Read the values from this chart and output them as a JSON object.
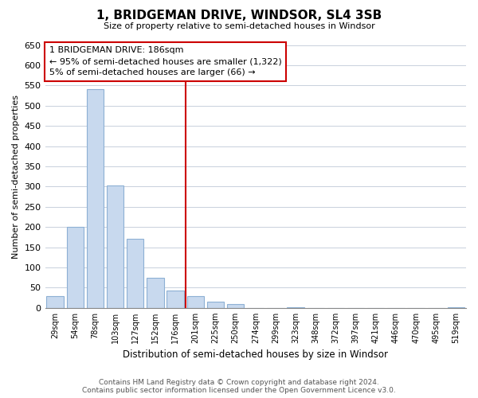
{
  "title": "1, BRIDGEMAN DRIVE, WINDSOR, SL4 3SB",
  "subtitle": "Size of property relative to semi-detached houses in Windsor",
  "xlabel": "Distribution of semi-detached houses by size in Windsor",
  "ylabel": "Number of semi-detached properties",
  "footer_line1": "Contains HM Land Registry data © Crown copyright and database right 2024.",
  "footer_line2": "Contains public sector information licensed under the Open Government Licence v3.0.",
  "bar_labels": [
    "29sqm",
    "54sqm",
    "78sqm",
    "103sqm",
    "127sqm",
    "152sqm",
    "176sqm",
    "201sqm",
    "225sqm",
    "250sqm",
    "274sqm",
    "299sqm",
    "323sqm",
    "348sqm",
    "372sqm",
    "397sqm",
    "421sqm",
    "446sqm",
    "470sqm",
    "495sqm",
    "519sqm"
  ],
  "bar_values": [
    30,
    200,
    540,
    302,
    170,
    75,
    42,
    30,
    15,
    10,
    0,
    0,
    2,
    0,
    0,
    0,
    0,
    0,
    0,
    0,
    2
  ],
  "bar_color": "#c8d9ee",
  "bar_edge_color": "#8db0d4",
  "property_line_x": 6.5,
  "property_line_color": "#cc0000",
  "annotation_title": "1 BRIDGEMAN DRIVE: 186sqm",
  "annotation_line1": "← 95% of semi-detached houses are smaller (1,322)",
  "annotation_line2": "5% of semi-detached houses are larger (66) →",
  "ylim": [
    0,
    650
  ],
  "yticks": [
    0,
    50,
    100,
    150,
    200,
    250,
    300,
    350,
    400,
    450,
    500,
    550,
    600,
    650
  ],
  "background_color": "#ffffff",
  "grid_color": "#c8d0dc"
}
